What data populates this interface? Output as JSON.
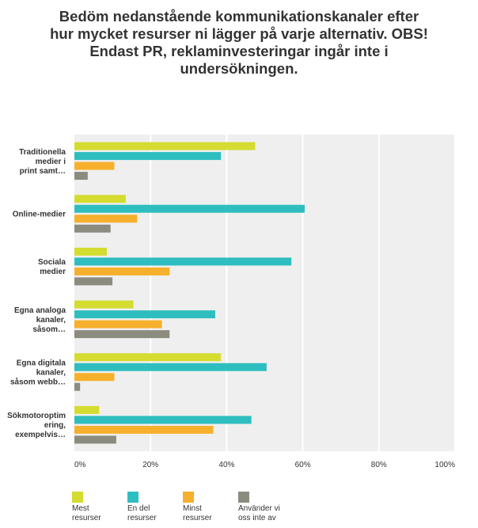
{
  "chart_data": {
    "type": "bar",
    "orientation": "horizontal",
    "title": "Bedöm nedanstående kommunikationskanaler efter hur mycket resurser ni lägger på varje alternativ. OBS! Endast PR, reklaminvesteringar ingår inte i undersökningen.",
    "categories": [
      [
        "Traditionella",
        "medier i",
        "print samt…"
      ],
      [
        "Online-medier"
      ],
      [
        "Sociala",
        "medier"
      ],
      [
        "Egna analoga",
        "kanaler,",
        "såsom…"
      ],
      [
        "Egna digitala",
        "kanaler,",
        "såsom webb…"
      ],
      [
        "Sökmotoroptim",
        "ering,",
        "exempelvis…"
      ]
    ],
    "series": [
      {
        "name": [
          "Mest",
          "resurser"
        ],
        "color": "#d4dc30",
        "values": [
          47.5,
          13.5,
          8.5,
          15.5,
          38.5,
          6.5
        ]
      },
      {
        "name": [
          "En del",
          "resurser"
        ],
        "color": "#2ebebf",
        "values": [
          38.5,
          60.5,
          57.0,
          37.0,
          50.5,
          46.5
        ]
      },
      {
        "name": [
          "Minst",
          "resurser"
        ],
        "color": "#f6b02c",
        "values": [
          10.5,
          16.5,
          25.0,
          23.0,
          10.5,
          36.5
        ]
      },
      {
        "name": [
          "Använder vi",
          "oss inte av"
        ],
        "color": "#8b8b80",
        "values": [
          3.5,
          9.5,
          10.0,
          25.0,
          1.5,
          11.0
        ]
      }
    ],
    "xlim": [
      0,
      100
    ],
    "xticks": [
      0,
      20,
      40,
      60,
      80,
      100
    ],
    "tick_format": "%",
    "grid": true,
    "legend_position": "bottom",
    "plot_background": "#efefef",
    "grid_color": "#ffffff"
  }
}
